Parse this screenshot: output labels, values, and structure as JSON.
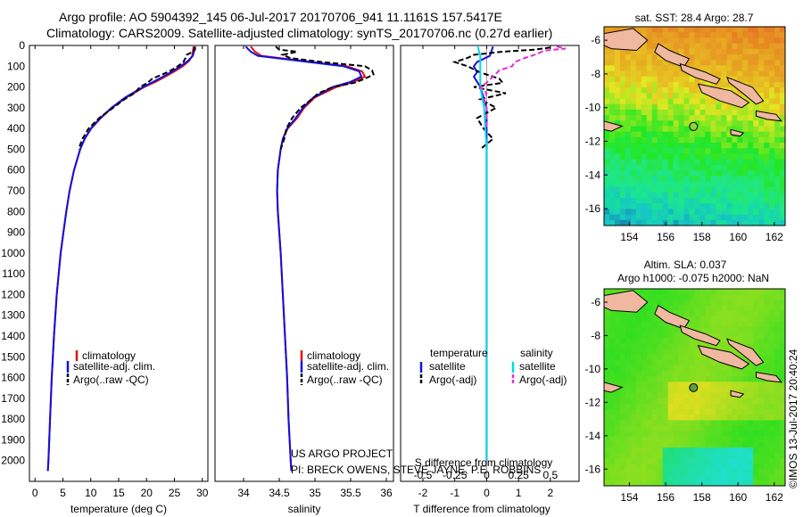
{
  "header": {
    "line1": "Argo profile: AO 5904392_145 06-Jul-2017 20170706_941 11.1161S 157.5417E",
    "line2": "Climatology: CARS2009. Satellite-adjusted climatology: synTS_20170706.nc (0.27d earlier)"
  },
  "panel_titles": {
    "sst": "sat. SST: 28.4 Argo: 28.7",
    "sla1": "Altim. SLA: 0.037",
    "sla2": "Argo h1000: -0.075 h2000: NaN"
  },
  "credit": {
    "project": "US ARGO PROJECT",
    "pi": "PI: BRECK OWENS, STEVE JAYNE, P.E. ROBBINS",
    "imos": "©IMOS 13-Jul-2017 20:40:24"
  },
  "colors": {
    "climatology": "#e01010",
    "satellite": "#1010e0",
    "argo": "#000000",
    "salinity_satellite": "#00d8e8",
    "salinity_argo": "#e030d0"
  },
  "chart_data": [
    {
      "type": "line",
      "id": "temperature",
      "xlabel": "temperature (deg C)",
      "ylabel": "",
      "xlim": [
        -1,
        31
      ],
      "ylim": [
        2100,
        0
      ],
      "xticks": [
        "0",
        "5",
        "10",
        "15",
        "20",
        "25",
        "30"
      ],
      "yticks": [
        "0",
        "100",
        "200",
        "300",
        "400",
        "500",
        "600",
        "700",
        "800",
        "900",
        "1000",
        "1100",
        "1200",
        "1300",
        "1400",
        "1500",
        "1600",
        "1700",
        "1800",
        "1900",
        "2000"
      ],
      "legend": [
        "climatology",
        "satellite-adj. clim.",
        "Argo(..raw -QC)"
      ],
      "legend_placement": "lower-right",
      "series": [
        {
          "name": "climatology",
          "depth": [
            5,
            30,
            50,
            75,
            100,
            125,
            150,
            175,
            200,
            250,
            300,
            350,
            400,
            450,
            500,
            600,
            700,
            800,
            900,
            1000,
            1200,
            1400,
            1600,
            1800,
            2000,
            2050
          ],
          "values": [
            28.4,
            28.3,
            28.2,
            27.6,
            26.5,
            25.0,
            23.4,
            21.6,
            19.6,
            16.4,
            13.8,
            11.8,
            10.1,
            8.9,
            8.1,
            7.0,
            6.2,
            5.6,
            5.1,
            4.6,
            3.9,
            3.4,
            3.0,
            2.7,
            2.4,
            2.3
          ]
        },
        {
          "name": "satellite-adj. clim.",
          "depth": [
            5,
            30,
            50,
            75,
            100,
            125,
            150,
            175,
            200,
            250,
            300,
            350,
            400,
            450,
            500,
            600,
            700,
            800,
            900,
            1000,
            1200,
            1400,
            1600,
            1800,
            2000,
            2050
          ],
          "values": [
            28.6,
            28.5,
            28.3,
            27.4,
            26.1,
            24.6,
            23.0,
            21.2,
            19.4,
            16.2,
            13.7,
            11.7,
            10.0,
            8.9,
            8.1,
            7.0,
            6.2,
            5.6,
            5.1,
            4.6,
            3.9,
            3.4,
            3.0,
            2.7,
            2.4,
            2.3
          ]
        },
        {
          "name": "Argo(..raw -QC)",
          "depth": [
            5,
            20,
            30,
            45,
            60,
            80,
            100,
            120,
            140,
            160,
            180,
            200,
            230,
            260,
            300,
            350,
            400,
            450,
            500
          ],
          "values": [
            28.7,
            28.7,
            28.3,
            27.2,
            27.0,
            26.6,
            25.6,
            24.4,
            22.8,
            21.0,
            20.2,
            18.8,
            17.8,
            16.0,
            14.0,
            11.5,
            9.6,
            8.5,
            7.8
          ]
        }
      ]
    },
    {
      "type": "line",
      "id": "salinity",
      "xlabel": "salinity",
      "ylabel": "",
      "xlim": [
        33.6,
        36.1
      ],
      "ylim": [
        2100,
        0
      ],
      "xticks": [
        "34",
        "34.5",
        "35",
        "35.5",
        "36"
      ],
      "legend": [
        "climatology",
        "satellite-adj. clim.",
        "Argo(..raw -QC)"
      ],
      "legend_placement": "lower-right",
      "series": [
        {
          "name": "climatology",
          "depth": [
            5,
            30,
            50,
            75,
            100,
            125,
            150,
            175,
            200,
            250,
            300,
            350,
            400,
            450,
            500,
            600,
            700,
            800,
            900,
            1000,
            1200,
            1400,
            1600,
            1800,
            2000,
            2050
          ],
          "values": [
            34.1,
            34.16,
            34.25,
            34.85,
            35.45,
            35.66,
            35.7,
            35.55,
            35.3,
            35.0,
            34.85,
            34.75,
            34.62,
            34.55,
            34.52,
            34.48,
            34.47,
            34.48,
            34.5,
            34.52,
            34.55,
            34.58,
            34.61,
            34.63,
            34.66,
            34.67
          ]
        },
        {
          "name": "satellite-adj. clim.",
          "depth": [
            5,
            30,
            50,
            75,
            100,
            125,
            150,
            175,
            200,
            250,
            300,
            350,
            400,
            450,
            500,
            600,
            700,
            800,
            900,
            1000,
            1200,
            1400,
            1600,
            1800,
            2000,
            2050
          ],
          "values": [
            34.03,
            34.1,
            34.2,
            34.8,
            35.4,
            35.62,
            35.65,
            35.5,
            35.25,
            34.98,
            34.83,
            34.73,
            34.61,
            34.55,
            34.52,
            34.48,
            34.47,
            34.48,
            34.5,
            34.52,
            34.55,
            34.58,
            34.61,
            34.63,
            34.66,
            34.67
          ]
        },
        {
          "name": "Argo(..raw -QC)",
          "depth": [
            5,
            20,
            30,
            45,
            60,
            80,
            100,
            120,
            140,
            160,
            180,
            200,
            230,
            260,
            300,
            350,
            400,
            450,
            500
          ],
          "values": [
            34.45,
            34.5,
            34.75,
            34.55,
            34.65,
            35.1,
            35.7,
            35.8,
            35.82,
            35.7,
            35.55,
            35.25,
            35.05,
            34.95,
            34.8,
            34.68,
            34.6,
            34.57,
            34.52
          ]
        }
      ]
    },
    {
      "type": "line",
      "id": "difference",
      "xlabel": "T difference from climatology",
      "xlabel_top": "S difference from climatology",
      "xlim": [
        -2.7,
        2.9
      ],
      "ylim": [
        2100,
        0
      ],
      "xticks": [
        "-2",
        "-1",
        "0",
        "1",
        "2"
      ],
      "xticks_salinity": [
        "-0.5",
        "-0.25",
        "0",
        "0.25",
        "0.5"
      ],
      "legend": {
        "temperature_head": "temperature",
        "salinity_head": "salinity",
        "t_sat": "satellite",
        "t_argo": "Argo(-adj)",
        "s_sat": "satellite",
        "s_argo": "Argo(-adj)"
      },
      "legend_placement": "lower-center",
      "series": [
        {
          "name": "T satellite",
          "depth": [
            5,
            50,
            80,
            100,
            130,
            150,
            200,
            250,
            300,
            400,
            500,
            700,
            1000,
            1500,
            2000
          ],
          "values": [
            0.2,
            0.1,
            -0.3,
            -0.4,
            -0.3,
            -0.4,
            -0.2,
            -0.1,
            0.0,
            0.0,
            0.0,
            0.0,
            0.0,
            0.0,
            0.0
          ]
        },
        {
          "name": "T Argo(-adj)",
          "depth": [
            10,
            20,
            30,
            45,
            60,
            80,
            100,
            130,
            160,
            180,
            200,
            230,
            260,
            300,
            350,
            400,
            450,
            500
          ],
          "values": [
            2.0,
            1.5,
            0.5,
            -0.4,
            -0.6,
            -1.0,
            -0.6,
            -0.2,
            0.4,
            0.5,
            -0.4,
            0.6,
            -0.2,
            0.3,
            -0.3,
            -0.1,
            0.2,
            -0.2
          ]
        },
        {
          "name": "S satellite",
          "depth": [
            5,
            50,
            100,
            150,
            200,
            300,
            400,
            500,
            700,
            1000,
            1500,
            2000
          ],
          "values": [
            -0.07,
            -0.05,
            -0.05,
            -0.05,
            -0.05,
            -0.02,
            -0.01,
            0.0,
            0.0,
            0.0,
            0.0,
            0.0
          ]
        },
        {
          "name": "S Argo(-adj)",
          "depth": [
            5,
            15,
            25,
            40,
            60,
            80,
            100,
            120,
            150,
            180,
            200,
            230,
            260,
            300,
            350,
            400
          ],
          "values": [
            0.55,
            0.62,
            0.45,
            0.4,
            0.3,
            0.22,
            0.2,
            0.1,
            0.05,
            0.0,
            -0.05,
            0.0,
            -0.02,
            0.0,
            0.0,
            0.0
          ]
        }
      ]
    },
    {
      "type": "heatmap",
      "id": "sst-map",
      "title": "sat. SST: 28.4 Argo: 28.7",
      "xticks": [
        "154",
        "156",
        "158",
        "160",
        "162"
      ],
      "yticks": [
        "-6",
        "-8",
        "-10",
        "-12",
        "-14",
        "-16"
      ],
      "xlim": [
        152.6,
        162.6
      ],
      "ylim": [
        -17,
        -5.2
      ],
      "float_position": [
        157.54,
        -11.12
      ]
    },
    {
      "type": "heatmap",
      "id": "sla-map",
      "title": "Altim. SLA: 0.037",
      "subtitle": "Argo h1000: -0.075 h2000: NaN",
      "xticks": [
        "154",
        "156",
        "158",
        "160",
        "162"
      ],
      "yticks": [
        "-6",
        "-8",
        "-10",
        "-12",
        "-14",
        "-16"
      ],
      "xlim": [
        152.6,
        162.6
      ],
      "ylim": [
        -17,
        -5.2
      ],
      "float_position": [
        157.54,
        -11.12
      ]
    }
  ]
}
